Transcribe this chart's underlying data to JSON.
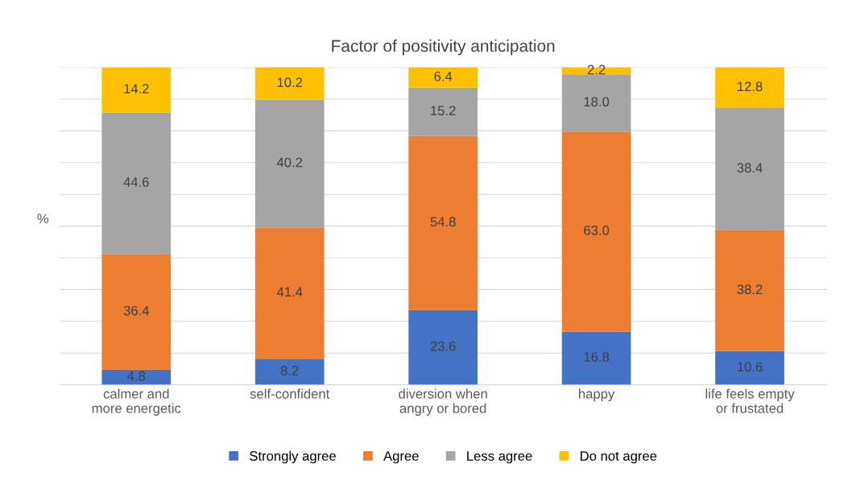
{
  "chart_data": {
    "type": "bar",
    "title": "Factor of positivity anticipation",
    "ylabel": "%",
    "categories": [
      "calmer and more energetic",
      "self-confident",
      "diversion when angry or bored",
      "happy",
      "life feels empty or frustated"
    ],
    "stacked": true,
    "grid": "y",
    "legend": "bottom",
    "tick_labels": "x",
    "ylim": [
      0,
      100
    ],
    "yticks": [
      {
        "value": 0,
        "label": null
      },
      {
        "value": 10,
        "label": null
      },
      {
        "value": 20,
        "label": null
      },
      {
        "value": 30,
        "label": null
      },
      {
        "value": 40,
        "label": null
      },
      {
        "value": 50,
        "label": null
      },
      {
        "value": 60,
        "label": null
      },
      {
        "value": 70,
        "label": null
      },
      {
        "value": 80,
        "label": null
      },
      {
        "value": 90,
        "label": null
      },
      {
        "value": 100,
        "label": null
      }
    ],
    "series": [
      {
        "name": "Strongly agree",
        "color": "#4472c4",
        "values": [
          4.8,
          8.2,
          23.6,
          16.8,
          10.6
        ],
        "value_labels": [
          "4.8",
          "8.2",
          "23.6",
          "16.8",
          "10.6"
        ]
      },
      {
        "name": "Agree",
        "color": "#ed7d31",
        "values": [
          36.4,
          41.4,
          54.8,
          63.0,
          38.2
        ],
        "value_labels": [
          "36.4",
          "41.4",
          "54.8",
          "63.0",
          "38.2"
        ]
      },
      {
        "name": "Less agree",
        "color": "#a5a5a5",
        "values": [
          44.6,
          40.2,
          15.2,
          18.0,
          38.4
        ],
        "value_labels": [
          "44.6",
          "40.2",
          "15.2",
          "18.0",
          "38.4"
        ]
      },
      {
        "name": "Do not agree",
        "color": "#ffc000",
        "values": [
          14.2,
          10.2,
          6.4,
          2.2,
          12.8
        ],
        "value_labels": [
          "14.2",
          "10.2",
          "6.4",
          "2.2",
          "12.8"
        ]
      }
    ]
  }
}
